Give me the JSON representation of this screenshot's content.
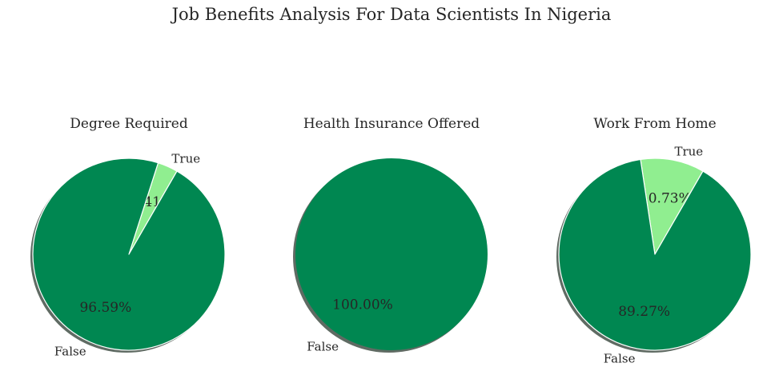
{
  "figure": {
    "title": "Job Benefits Analysis For Data Scientists In Nigeria"
  },
  "chart_data": [
    {
      "type": "pie",
      "title": "Degree Required",
      "labels": [
        "True",
        "False"
      ],
      "values": [
        3.41,
        96.59
      ],
      "pct_labels": [
        "3.41%",
        "96.59%"
      ],
      "colors": [
        "#90ee90",
        "#008751"
      ],
      "start_angle_deg": 60,
      "shadow": true
    },
    {
      "type": "pie",
      "title": "Health Insurance Offered",
      "labels": [
        "False"
      ],
      "values": [
        100.0
      ],
      "pct_labels": [
        "100.00%"
      ],
      "colors": [
        "#008751"
      ],
      "start_angle_deg": 60,
      "shadow": true
    },
    {
      "type": "pie",
      "title": "Work From Home",
      "labels": [
        "True",
        "False"
      ],
      "values": [
        10.73,
        89.27
      ],
      "pct_labels": [
        "10.73%",
        "89.27%"
      ],
      "colors": [
        "#90ee90",
        "#008751"
      ],
      "start_angle_deg": 60,
      "shadow": true
    }
  ]
}
